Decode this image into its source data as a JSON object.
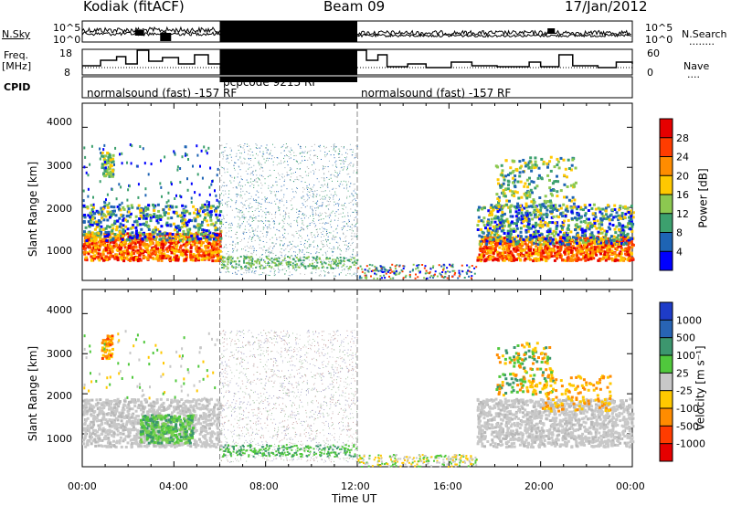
{
  "header": {
    "station": "Kodiak (fitACF)",
    "beam": "Beam 09",
    "date": "17/Jan/2012"
  },
  "labels": {
    "nsky": "N.Sky",
    "nsearch": "N.Search",
    "nsearch_dots": "........",
    "freq": "Freq.",
    "freq_unit": "[MHz]",
    "nave": "Nave",
    "nave_dots": "....",
    "cpid": "CPID",
    "nsky_ticks": [
      "10^5",
      "10^0"
    ],
    "nsearch_ticks": [
      "10^5",
      "10^0"
    ],
    "freq_ticks": [
      "18",
      "8"
    ],
    "nave_ticks": [
      "60",
      "0"
    ]
  },
  "cpid_segments": [
    {
      "label": "normalsound (fast) -157 RF",
      "start": 0,
      "end": 6
    },
    {
      "label": "pcpcode 9213 RF",
      "start": 6,
      "end": 12
    },
    {
      "label": "normalsound (fast) -157 RF",
      "start": 12,
      "end": 24
    }
  ],
  "chart_data": [
    {
      "type": "heatmap",
      "panel": "power",
      "ylabel": "Slant Range [km]",
      "xlabel": "",
      "ylim": [
        180,
        4600
      ],
      "yticks": [
        "1000",
        "2000",
        "3000",
        "4000"
      ],
      "xticks": [
        "00:00",
        "04:00",
        "08:00",
        "12:00",
        "16:00",
        "20:00",
        "00:00"
      ],
      "colorbar": {
        "label": "Power [dB]",
        "ticks": [
          "4",
          "8",
          "12",
          "16",
          "20",
          "24",
          "28"
        ],
        "colors": [
          "#0000ff",
          "#1e64b4",
          "#3ca06e",
          "#8cc850",
          "#ffc800",
          "#ff8c00",
          "#ff3c00",
          "#e60000"
        ]
      }
    },
    {
      "type": "heatmap",
      "panel": "velocity",
      "ylabel": "Slant Range [km]",
      "xlabel": "Time UT",
      "ylim": [
        180,
        4600
      ],
      "yticks": [
        "1000",
        "2000",
        "3000",
        "4000"
      ],
      "xticks": [
        "00:00",
        "04:00",
        "08:00",
        "12:00",
        "16:00",
        "20:00",
        "00:00"
      ],
      "colorbar": {
        "label": "Velocity [m s⁻¹]",
        "ticks": [
          "1000",
          "500",
          "100",
          "25",
          "-25",
          "-100",
          "-500",
          "-1000"
        ],
        "colors": [
          "#1e3cc8",
          "#2864b4",
          "#3c966e",
          "#50c83c",
          "#c8c8c8",
          "#ffc800",
          "#ff8c00",
          "#ff3c00",
          "#e60000"
        ]
      }
    }
  ]
}
